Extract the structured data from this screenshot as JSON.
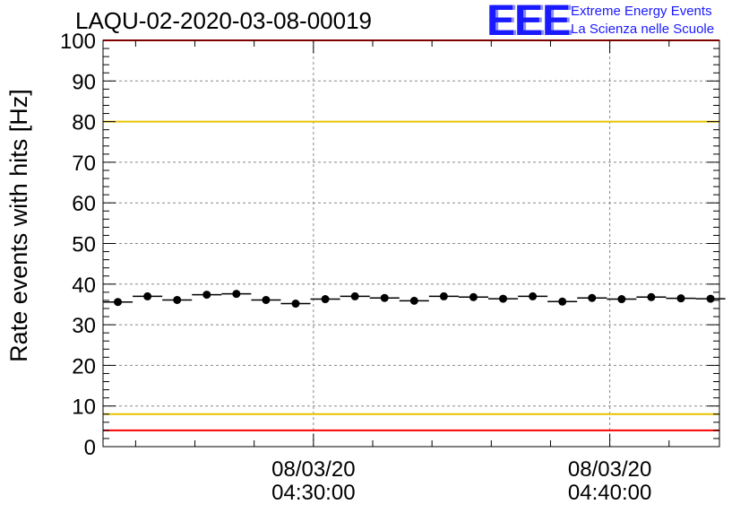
{
  "header": {
    "title": "LAQU-02-2020-03-08-00019",
    "logo_text": "EEE",
    "logo_line1": "Extreme Energy Events",
    "logo_line2": "La Scienza nelle Scuole"
  },
  "chart_data": {
    "type": "scatter",
    "title": "LAQU-02-2020-03-08-00019",
    "xlabel": "",
    "ylabel": "Rate events with hits [Hz]",
    "ylim": [
      0,
      100
    ],
    "yticks": [
      0,
      10,
      20,
      30,
      40,
      50,
      60,
      70,
      80,
      90,
      100
    ],
    "xlim_minutes": [
      22.9,
      43.7
    ],
    "xticks": [
      {
        "minute": 30,
        "line1": "08/03/20",
        "line2": "04:30:00"
      },
      {
        "minute": 40,
        "line1": "08/03/20",
        "line2": "04:40:00"
      }
    ],
    "x_unit": "minutes after 04:00:00 on 08/03/20",
    "bin_width_minutes": 1.0,
    "grid": true,
    "series": [
      {
        "name": "rate",
        "color": "#000000",
        "x": [
          23.4,
          24.4,
          25.4,
          26.4,
          27.4,
          28.4,
          29.4,
          30.4,
          31.4,
          32.4,
          33.4,
          34.4,
          35.4,
          36.4,
          37.4,
          38.4,
          39.4,
          40.4,
          41.4,
          42.4,
          43.4
        ],
        "y": [
          35.6,
          37.0,
          36.1,
          37.4,
          37.6,
          36.1,
          35.2,
          36.3,
          37.0,
          36.6,
          35.9,
          37.0,
          36.8,
          36.4,
          37.0,
          35.7,
          36.6,
          36.3,
          36.8,
          36.5,
          36.4
        ]
      }
    ],
    "reference_lines": [
      {
        "name": "upper-red-limit",
        "y": 100,
        "color": "#ff0000"
      },
      {
        "name": "upper-yellow-limit",
        "y": 80,
        "color": "#e6c300"
      },
      {
        "name": "lower-yellow-limit",
        "y": 8,
        "color": "#e6c300"
      },
      {
        "name": "lower-red-limit",
        "y": 4,
        "color": "#ff0000"
      }
    ]
  }
}
